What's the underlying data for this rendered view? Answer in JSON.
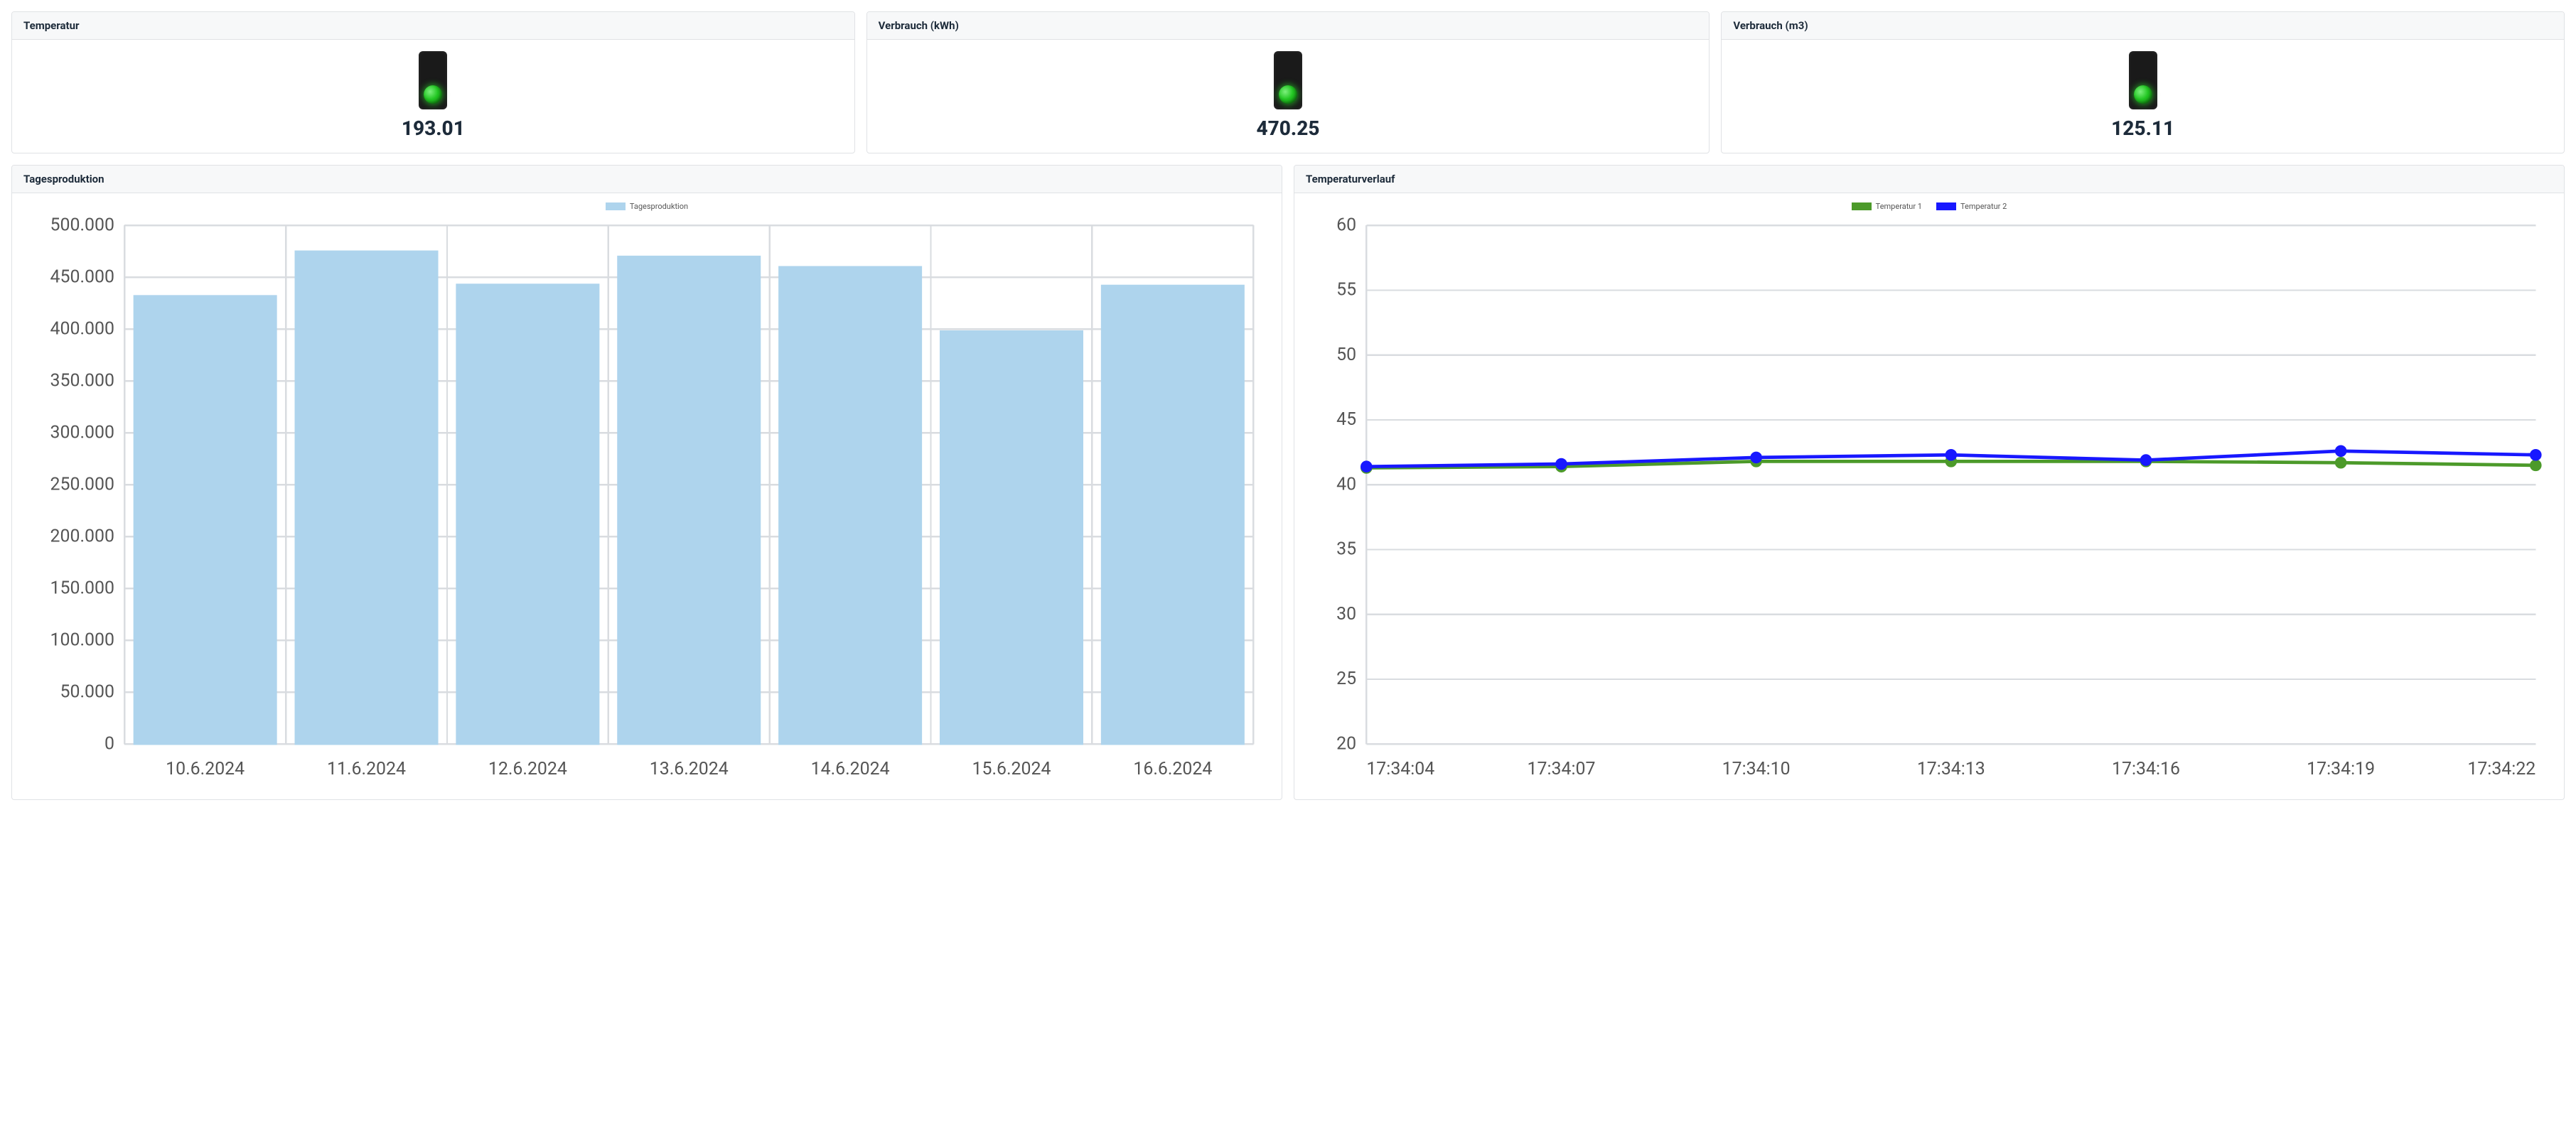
{
  "kpis": [
    {
      "title": "Temperatur",
      "value": "193.01",
      "status_color": "#23c723"
    },
    {
      "title": "Verbrauch (kWh)",
      "value": "470.25",
      "status_color": "#23c723"
    },
    {
      "title": "Verbrauch (m3)",
      "value": "125.11",
      "status_color": "#23c723"
    }
  ],
  "production_chart": {
    "title": "Tagesproduktion",
    "type": "bar",
    "legend_label": "Tagesproduktion",
    "bar_color": "#aed4ed",
    "bar_border": "#aed4ed",
    "categories": [
      "10.6.2024",
      "11.6.2024",
      "12.6.2024",
      "13.6.2024",
      "14.6.2024",
      "15.6.2024",
      "16.6.2024"
    ],
    "values": [
      432000,
      475000,
      443000,
      470000,
      460000,
      398000,
      442000
    ],
    "ylim": [
      0,
      500000
    ],
    "ytick_step": 50000,
    "ytick_labels": [
      "0",
      "50.000",
      "100.000",
      "150.000",
      "200.000",
      "250.000",
      "300.000",
      "350.000",
      "400.000",
      "450.000",
      "500.000"
    ],
    "grid_color": "#d9dce0",
    "background_color": "#ffffff",
    "label_fontsize": 10.5
  },
  "temperature_chart": {
    "title": "Temperaturverlauf",
    "type": "line",
    "series": [
      {
        "name": "Temperatur 1",
        "color": "#4c9a2a",
        "values": [
          41.3,
          41.4,
          41.8,
          41.8,
          41.8,
          41.7,
          41.5
        ]
      },
      {
        "name": "Temperatur 2",
        "color": "#1818ff",
        "values": [
          41.4,
          41.6,
          42.1,
          42.3,
          41.9,
          42.6,
          42.3
        ]
      }
    ],
    "x_labels": [
      "17:34:04",
      "17:34:07",
      "17:34:10",
      "17:34:13",
      "17:34:16",
      "17:34:19",
      "17:34:22"
    ],
    "ylim": [
      20,
      60
    ],
    "ytick_step": 5,
    "ytick_labels": [
      "20",
      "25",
      "30",
      "35",
      "40",
      "45",
      "50",
      "55",
      "60"
    ],
    "marker_radius": 3,
    "line_width": 2,
    "grid_color": "#d9dce0",
    "background_color": "#ffffff",
    "label_fontsize": 10.5
  }
}
